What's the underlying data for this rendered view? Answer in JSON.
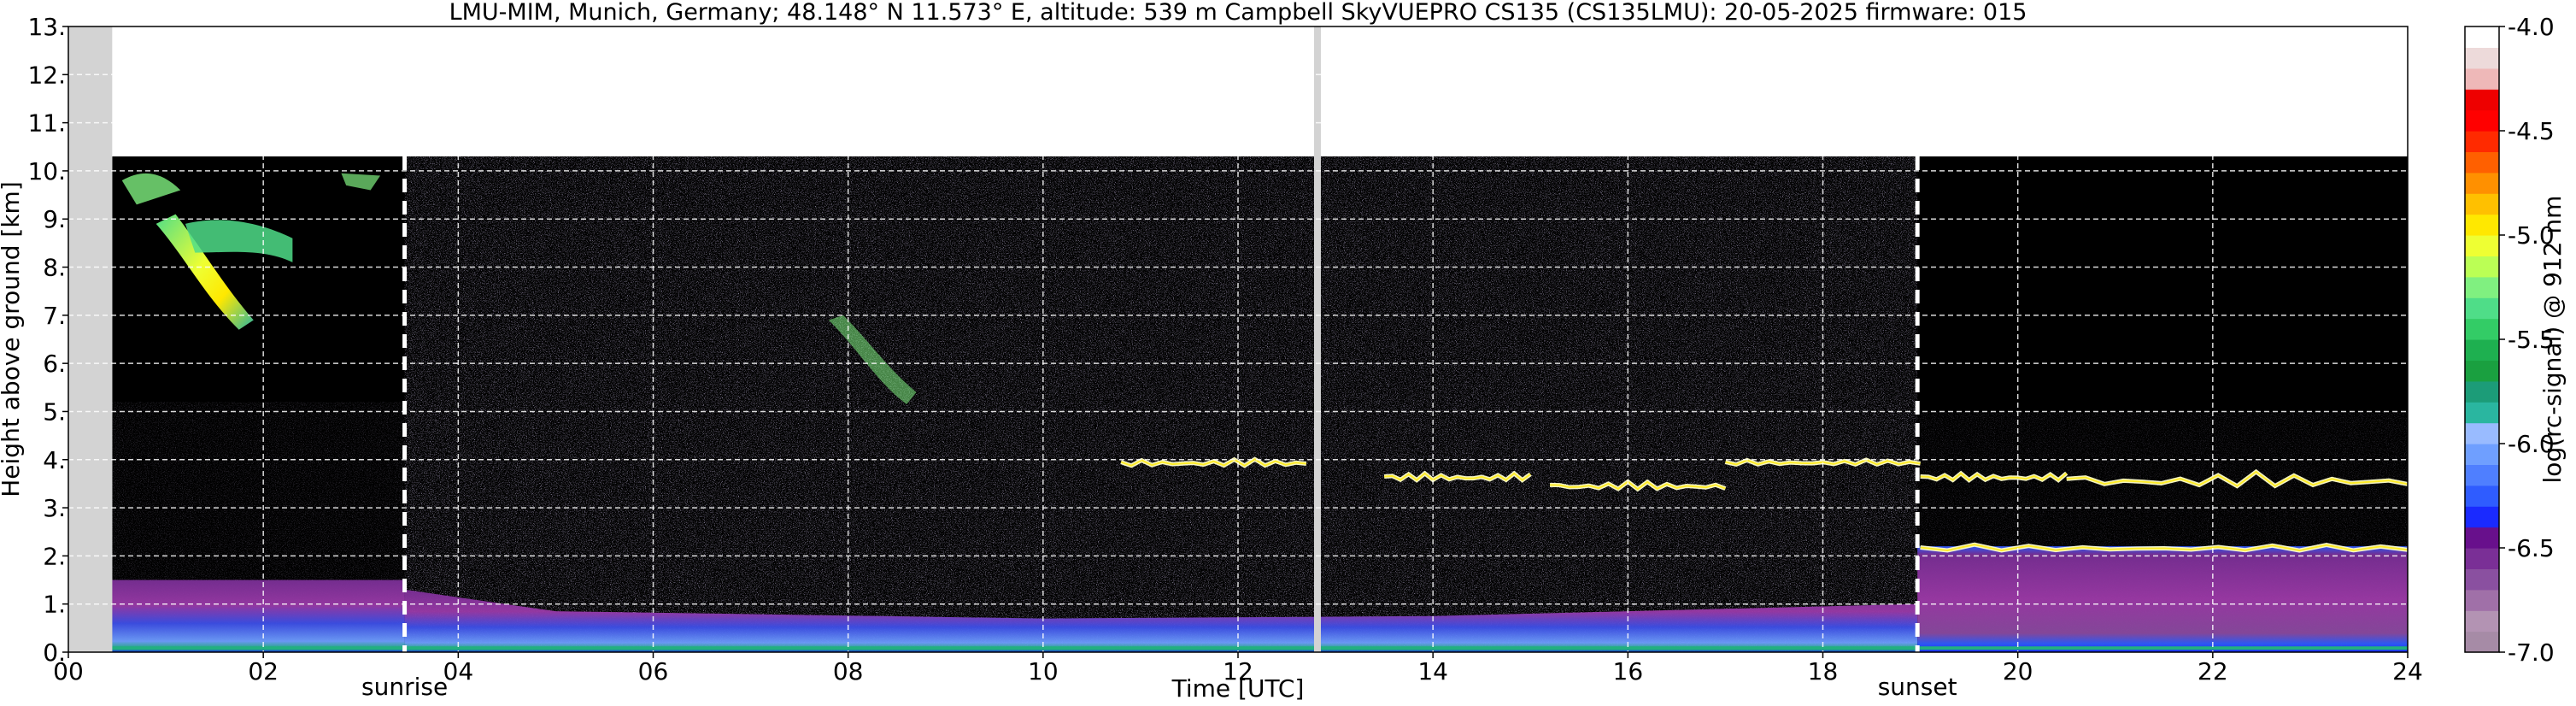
{
  "chart_data": {
    "type": "heatmap",
    "title": "LMU-MIM, Munich, Germany; 48.148° N 11.573° E, altitude: 539 m    Campbell SkyVUEPRO CS135 (CS135LMU): 20-05-2025    firmware: 015",
    "xlabel": "Time [UTC]",
    "ylabel": "Height above ground [km]",
    "colorbar_label": "log(rc-signal) @ 912 nm",
    "xlim": [
      0,
      24
    ],
    "ylim": [
      0,
      13
    ],
    "x_ticks": [
      0,
      2,
      4,
      6,
      8,
      10,
      12,
      14,
      16,
      18,
      20,
      22,
      24
    ],
    "x_tick_labels": [
      "00",
      "02",
      "04",
      "06",
      "08",
      "10",
      "12",
      "14",
      "16",
      "18",
      "20",
      "22",
      "24"
    ],
    "y_ticks": [
      0,
      1,
      2,
      3,
      4,
      5,
      6,
      7,
      8,
      9,
      10,
      11,
      12,
      13
    ],
    "y_tick_labels": [
      "0.",
      "1.",
      "2.",
      "3.",
      "4.",
      "5.",
      "6.",
      "7.",
      "8.",
      "9.",
      "10.",
      "11.",
      "12.",
      "13."
    ],
    "grid": true,
    "colorbar_range": [
      -7.0,
      -4.0
    ],
    "colorbar_ticks": [
      -7.0,
      -6.5,
      -6.0,
      -5.5,
      -5.0,
      -4.5,
      -4.0
    ],
    "colorbar_tick_labels": [
      "-7.0",
      "-6.5",
      "-6.0",
      "-5.5",
      "-5.0",
      "-4.5",
      "-4.0"
    ],
    "colorbar_colors": [
      "#a68ba6",
      "#b393b3",
      "#a070a8",
      "#8a50a0",
      "#7a2f96",
      "#68108c",
      "#1a2aff",
      "#2f5cff",
      "#4f7fff",
      "#6f9fff",
      "#99bbff",
      "#2ab6a0",
      "#1c9c78",
      "#1aa040",
      "#1eb050",
      "#33cc66",
      "#4fdd88",
      "#80f080",
      "#bbff55",
      "#eeff33",
      "#ffe800",
      "#ffc000",
      "#ff9000",
      "#ff6000",
      "#ff2a00",
      "#ff0000",
      "#ee0000",
      "#eeb8b8",
      "#eddada",
      "#ffffff"
    ],
    "annotations": [
      {
        "label": "sunrise",
        "x": 3.45
      },
      {
        "label": "sunset",
        "x": 18.97
      }
    ],
    "data_gaps": [
      [
        0,
        0.45
      ],
      [
        12.78,
        12.85
      ]
    ],
    "data_top_km": 10.3,
    "features": [
      {
        "name": "cirrus",
        "x_range": [
          0.45,
          2.7
        ],
        "height_range": [
          6.5,
          10.1
        ]
      },
      {
        "name": "thin layer",
        "x_range": [
          7.7,
          8.7
        ],
        "height_range": [
          5.1,
          7.0
        ]
      },
      {
        "name": "cloud layer",
        "x_range": [
          10.8,
          24.0
        ],
        "height_range": [
          2.9,
          4.2
        ]
      },
      {
        "name": "boundary layer",
        "x_range": [
          0.45,
          24.0
        ],
        "height_range": [
          0.0,
          2.2
        ]
      }
    ]
  }
}
